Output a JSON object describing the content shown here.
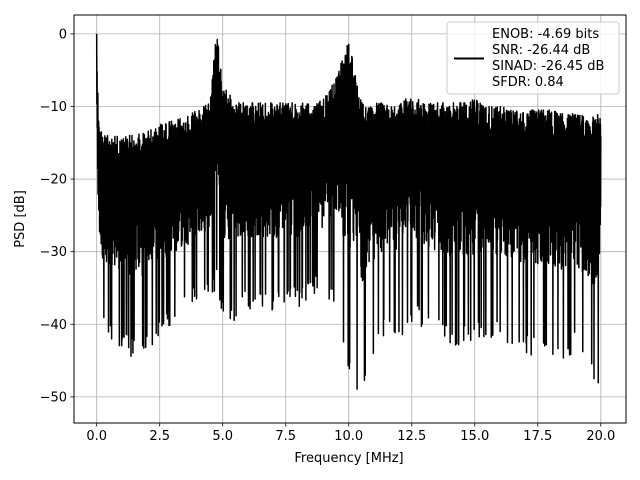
{
  "chart_data": {
    "type": "line",
    "title": "",
    "xlabel": "Frequency [MHz]",
    "ylabel": "PSD [dB]",
    "xlim": [
      -0.9,
      21.0
    ],
    "ylim": [
      -53.6,
      2.6
    ],
    "xticks": [
      0.0,
      2.5,
      5.0,
      7.5,
      10.0,
      12.5,
      15.0,
      17.5,
      20.0
    ],
    "xtick_labels": [
      "0.0",
      "2.5",
      "5.0",
      "7.5",
      "10.0",
      "12.5",
      "15.0",
      "17.5",
      "20.0"
    ],
    "yticks": [
      0,
      -10,
      -20,
      -30,
      -40,
      -50
    ],
    "ytick_labels": [
      "0",
      "−10",
      "−20",
      "−30",
      "−40",
      "−50"
    ],
    "grid": true,
    "legend_position": "top-right",
    "legend": [
      "ENOB: -4.69 bits",
      "SNR: -26.44 dB",
      "SINAD: -26.45 dB",
      "SFDR: 0.84"
    ],
    "series": [
      {
        "color": "#000000",
        "x": [
          0.0,
          0.05,
          0.1,
          0.25,
          0.5,
          1.0,
          1.5,
          2.0,
          2.5,
          3.0,
          3.5,
          4.0,
          4.5,
          4.7,
          4.8,
          5.0,
          5.5,
          6.0,
          6.5,
          7.0,
          7.5,
          8.0,
          8.5,
          8.7,
          8.8,
          9.0,
          9.5,
          10.0,
          10.5,
          11.0,
          11.5,
          12.0,
          12.5,
          13.0,
          13.5,
          14.0,
          14.5,
          15.0,
          15.5,
          16.0,
          16.5,
          17.0,
          17.5,
          18.0,
          18.5,
          19.0,
          19.5,
          20.0
        ],
        "upper": [
          0,
          -8,
          -12,
          -14,
          -14,
          -14,
          -14,
          -13.5,
          -12.5,
          -12,
          -11.5,
          -10.5,
          -9.5,
          -1.5,
          -0.5,
          -7,
          -9.5,
          -9.5,
          -9.5,
          -9.5,
          -9.5,
          -9.5,
          -9.5,
          -9.5,
          -9,
          -9,
          -6,
          -1,
          -9.5,
          -9.5,
          -9.5,
          -9.5,
          -8.5,
          -9.5,
          -9.5,
          -9.5,
          -9.5,
          -9,
          -10,
          -10,
          -10.5,
          -10.5,
          -10.5,
          -10.5,
          -11,
          -11,
          -11.5,
          -11
        ],
        "lower": [
          -15,
          -30,
          -36,
          -40,
          -43,
          -44,
          -45,
          -44,
          -42,
          -40,
          -39,
          -37,
          -36,
          -36,
          -35,
          -40,
          -40,
          -38,
          -38,
          -39,
          -37,
          -38,
          -36,
          -36,
          -37,
          -37,
          -38,
          -48,
          -50,
          -44,
          -41,
          -42,
          -40,
          -41,
          -42,
          -43,
          -43,
          -43,
          -42,
          -42,
          -43,
          -44,
          -45,
          -46,
          -45,
          -44,
          -47,
          -51
        ]
      }
    ]
  }
}
